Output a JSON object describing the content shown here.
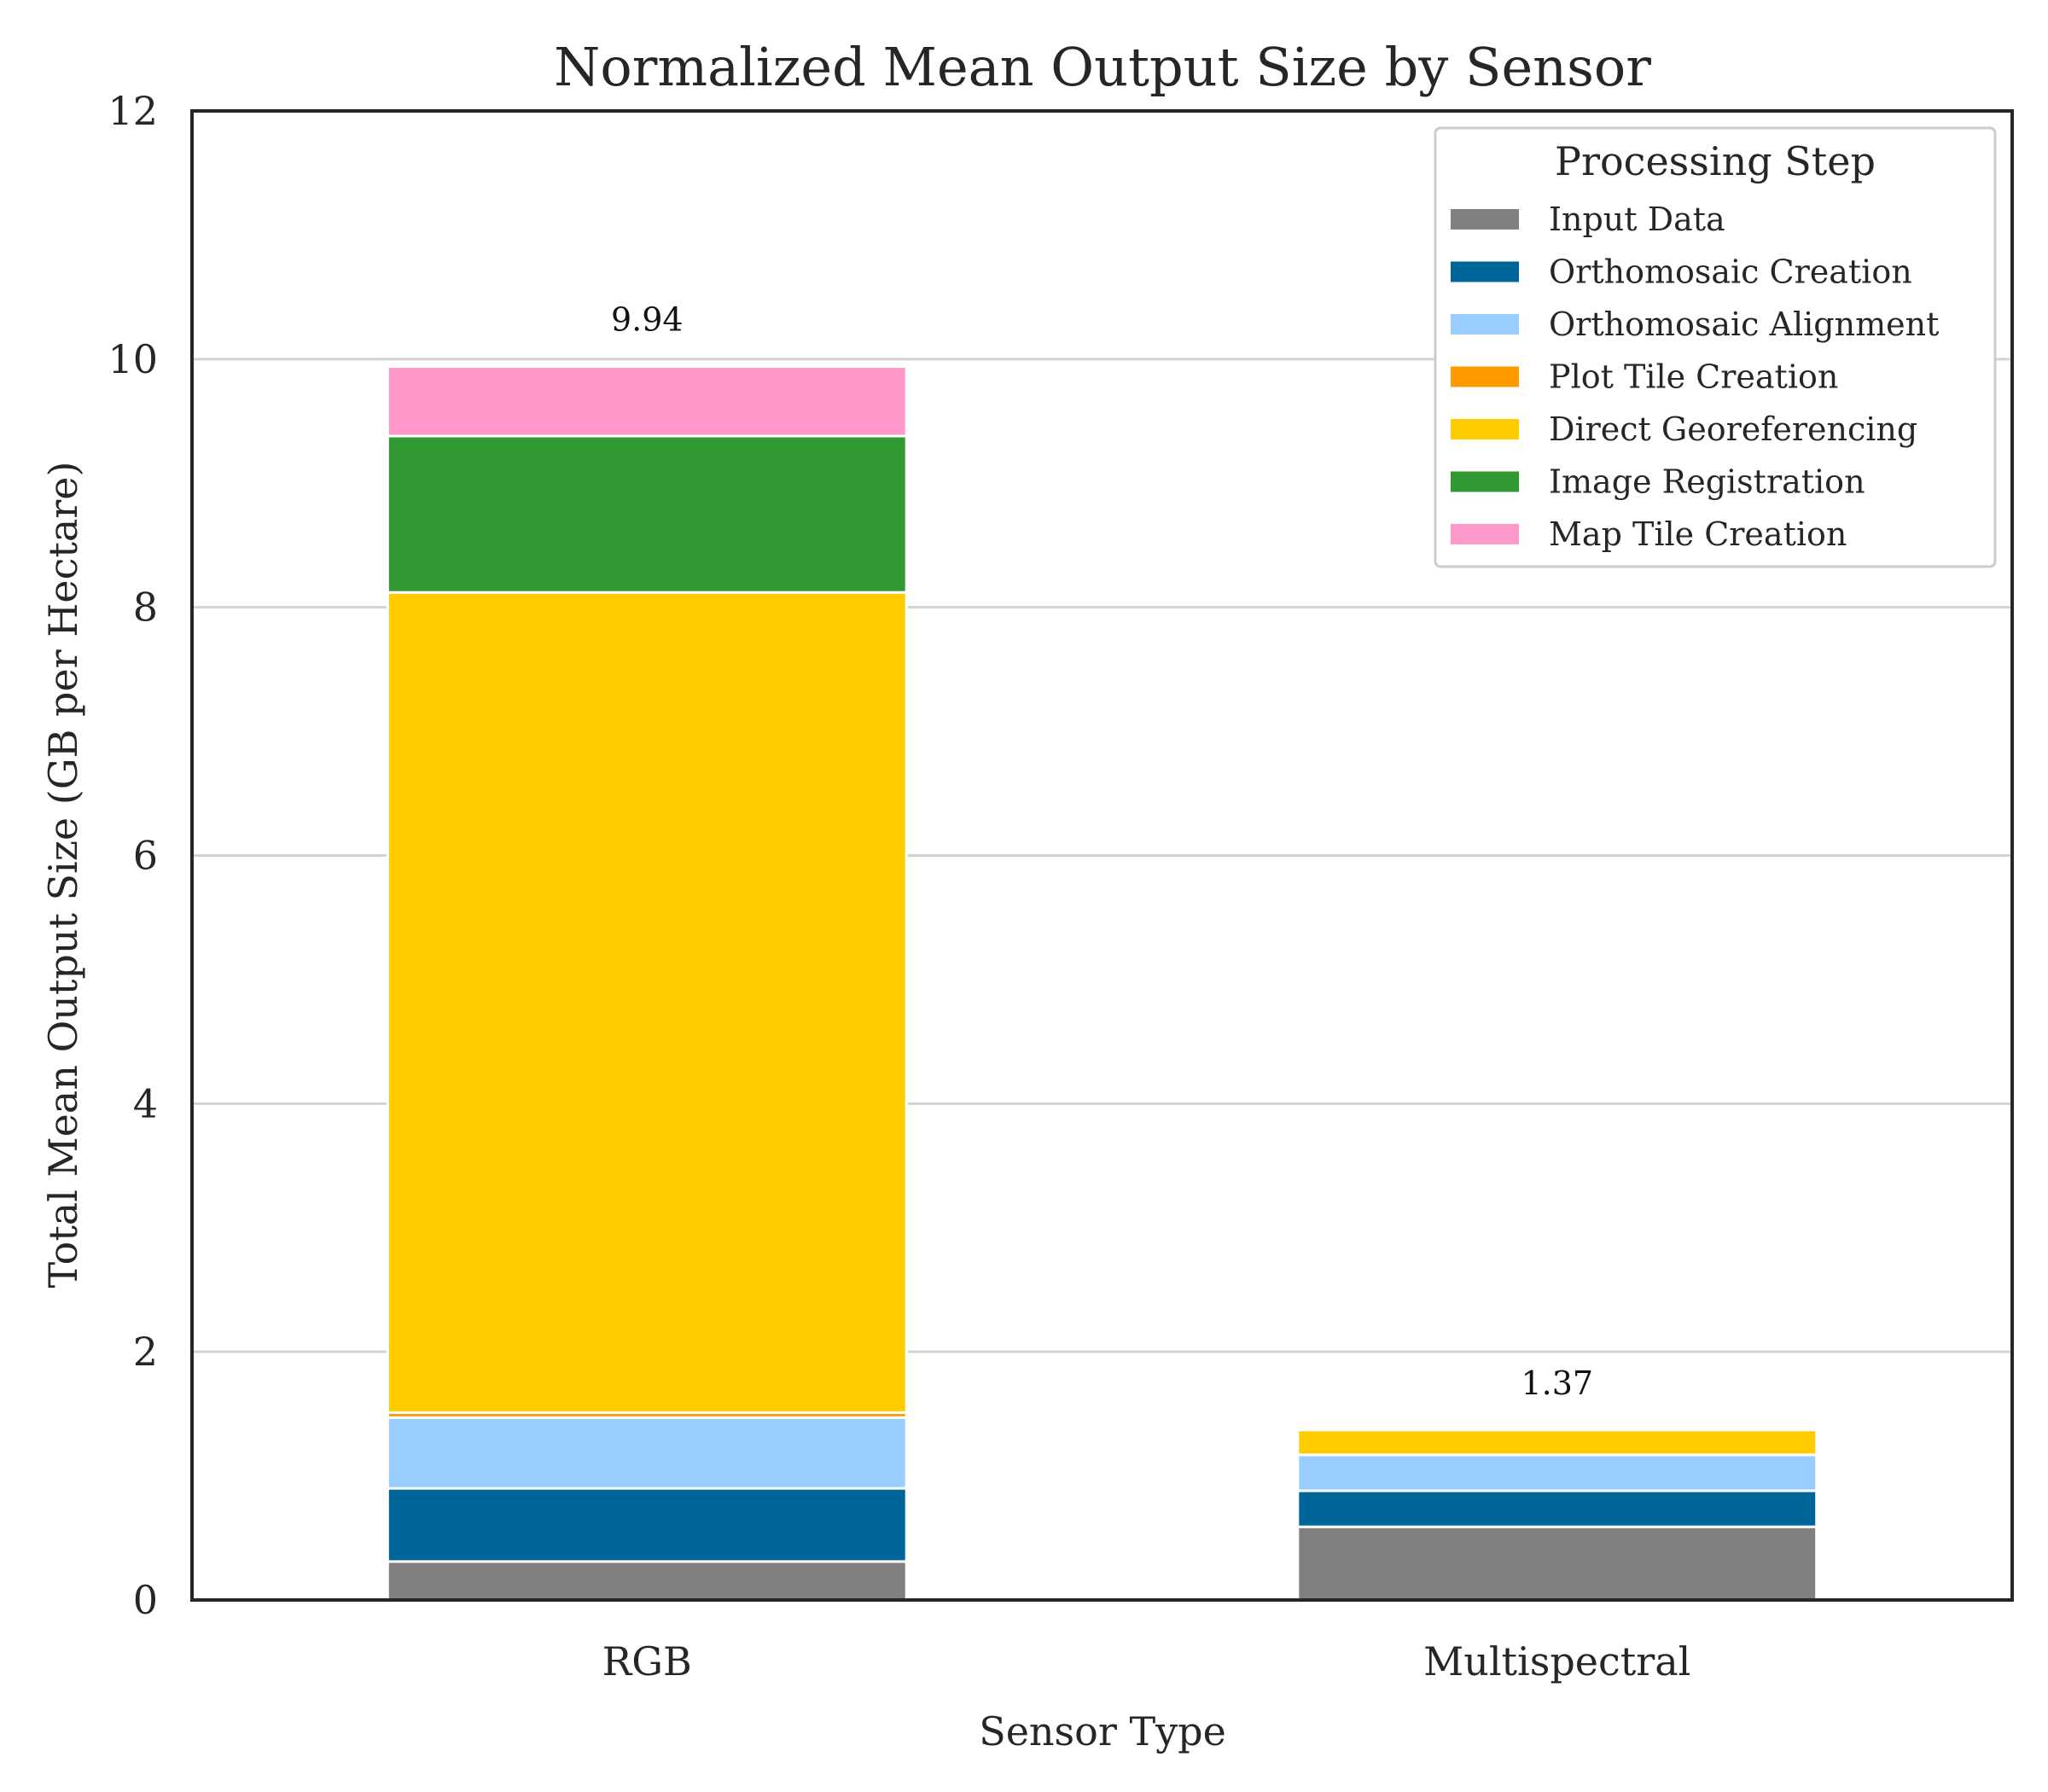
{
  "chart_data": {
    "type": "bar",
    "stacked": true,
    "title": "Normalized Mean Output Size by Sensor",
    "xlabel": "Sensor Type",
    "ylabel": "Total Mean Output Size (GB per Hectare)",
    "ylim": [
      0,
      12
    ],
    "yticks": [
      "0",
      "2",
      "4",
      "6",
      "8",
      "10",
      "12"
    ],
    "grid": true,
    "categories": [
      "RGB",
      "Multispectral"
    ],
    "totals": [
      "9.94",
      "1.37"
    ],
    "legend": {
      "title": "Processing Step",
      "placement": "top-right"
    },
    "series": [
      {
        "name": "Input Data",
        "color": "#808080",
        "values": [
          0.31,
          0.59
        ]
      },
      {
        "name": "Orthomosaic Creation",
        "color": "#006699",
        "values": [
          0.59,
          0.29
        ]
      },
      {
        "name": "Orthomosaic Alignment",
        "color": "#99ccff",
        "values": [
          0.57,
          0.29
        ]
      },
      {
        "name": "Plot Tile Creation",
        "color": "#ff9900",
        "values": [
          0.04,
          0.0
        ]
      },
      {
        "name": "Direct Georeferencing",
        "color": "#ffcc00",
        "values": [
          6.61,
          0.2
        ]
      },
      {
        "name": "Image Registration",
        "color": "#339933",
        "values": [
          1.26,
          0.0
        ]
      },
      {
        "name": "Map Tile Creation",
        "color": "#ff99cc",
        "values": [
          0.56,
          0.0
        ]
      }
    ]
  }
}
